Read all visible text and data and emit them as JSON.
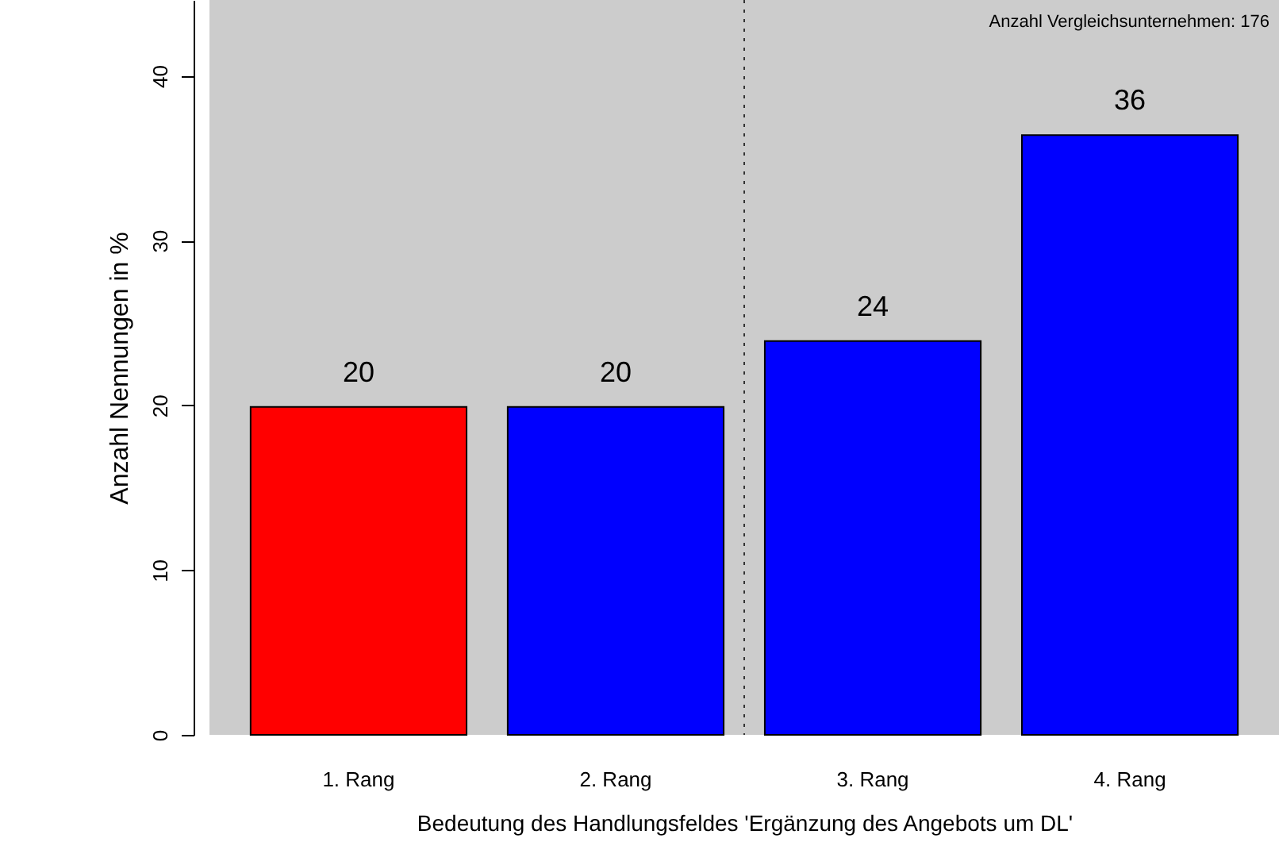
{
  "chart_data": {
    "type": "bar",
    "xlabel": "Bedeutung des Handlungsfeldes 'Ergänzung des Angebots um DL'",
    "ylabel": "Anzahl Nennungen in %",
    "categories": [
      "1. Rang",
      "2. Rang",
      "3. Rang",
      "4. Rang"
    ],
    "values": [
      19.9,
      19.9,
      23.9,
      36.4
    ],
    "value_labels": [
      "20",
      "20",
      "24",
      "36"
    ],
    "colors": [
      "#ff0000",
      "#0000ff",
      "#0000ff",
      "#0000ff"
    ],
    "ylim": [
      0,
      44.6
    ],
    "yticks": [
      0,
      10,
      20,
      30,
      40
    ],
    "grid": false,
    "annotations": [
      "Anzahl Vergleichsunternehmen: 176"
    ]
  }
}
